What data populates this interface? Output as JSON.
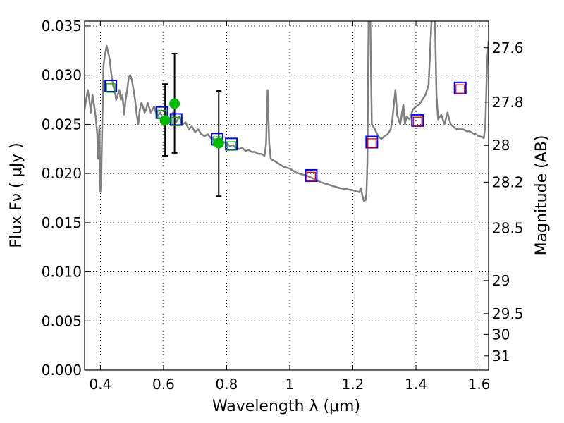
{
  "chart_data": {
    "type": "line",
    "title": "",
    "xlabel": "Wavelength  λ (μm)",
    "ylabel": "Flux  Fν  ( μJy )",
    "y2label": "Magnitude (AB)",
    "xlim": [
      0.35,
      1.63
    ],
    "ylim": [
      0.0,
      0.0355
    ],
    "grid": true,
    "xticks": [
      {
        "value": 0.4,
        "label": "0.4"
      },
      {
        "value": 0.6,
        "label": "0.6"
      },
      {
        "value": 0.8,
        "label": "0.8"
      },
      {
        "value": 1.0,
        "label": "1"
      },
      {
        "value": 1.2,
        "label": "1.2"
      },
      {
        "value": 1.4,
        "label": "1.4"
      },
      {
        "value": 1.6,
        "label": "1.6"
      }
    ],
    "yticks": [
      {
        "value": 0.0,
        "label": "0.000"
      },
      {
        "value": 0.005,
        "label": "0.005"
      },
      {
        "value": 0.01,
        "label": "0.010"
      },
      {
        "value": 0.015,
        "label": "0.015"
      },
      {
        "value": 0.02,
        "label": "0.020"
      },
      {
        "value": 0.025,
        "label": "0.025"
      },
      {
        "value": 0.03,
        "label": "0.030"
      },
      {
        "value": 0.035,
        "label": "0.035"
      }
    ],
    "mag_ticks": [
      {
        "value": 0.03279,
        "label": "27.6"
      },
      {
        "value": 0.02727,
        "label": "27.8"
      },
      {
        "value": 0.02286,
        "label": "28"
      },
      {
        "value": 0.01912,
        "label": "28.2"
      },
      {
        "value": 0.01445,
        "label": "28.5"
      },
      {
        "value": 0.00912,
        "label": "29"
      },
      {
        "value": 0.00575,
        "label": "29.5"
      },
      {
        "value": 0.00363,
        "label": "30"
      },
      {
        "value": 0.00145,
        "label": "31"
      }
    ],
    "spectrum": {
      "name": "model spectrum",
      "color": "#808080",
      "x": [
        0.35,
        0.355,
        0.36,
        0.365,
        0.37,
        0.375,
        0.38,
        0.385,
        0.39,
        0.393,
        0.397,
        0.4,
        0.403,
        0.407,
        0.41,
        0.413,
        0.417,
        0.42,
        0.423,
        0.427,
        0.43,
        0.435,
        0.44,
        0.445,
        0.45,
        0.455,
        0.46,
        0.465,
        0.47,
        0.475,
        0.48,
        0.485,
        0.49,
        0.495,
        0.5,
        0.505,
        0.51,
        0.515,
        0.52,
        0.525,
        0.53,
        0.535,
        0.54,
        0.545,
        0.55,
        0.56,
        0.57,
        0.58,
        0.59,
        0.6,
        0.61,
        0.62,
        0.63,
        0.64,
        0.65,
        0.66,
        0.67,
        0.68,
        0.69,
        0.7,
        0.71,
        0.72,
        0.73,
        0.74,
        0.75,
        0.76,
        0.77,
        0.78,
        0.79,
        0.8,
        0.81,
        0.82,
        0.83,
        0.84,
        0.85,
        0.86,
        0.87,
        0.88,
        0.89,
        0.9,
        0.91,
        0.92,
        0.925,
        0.93,
        0.935,
        0.94,
        0.95,
        0.96,
        0.97,
        0.98,
        0.99,
        1.0,
        1.02,
        1.04,
        1.06,
        1.08,
        1.1,
        1.12,
        1.14,
        1.16,
        1.18,
        1.2,
        1.21,
        1.22,
        1.225,
        1.23,
        1.235,
        1.24,
        1.243,
        1.246,
        1.25,
        1.255,
        1.26,
        1.27,
        1.28,
        1.29,
        1.3,
        1.31,
        1.32,
        1.325,
        1.33,
        1.335,
        1.34,
        1.35,
        1.36,
        1.365,
        1.37,
        1.38,
        1.39,
        1.4,
        1.41,
        1.42,
        1.43,
        1.44,
        1.45,
        1.46,
        1.465,
        1.47,
        1.48,
        1.49,
        1.5,
        1.51,
        1.52,
        1.53,
        1.54,
        1.55,
        1.56,
        1.57,
        1.58,
        1.59,
        1.6,
        1.61,
        1.615,
        1.62,
        1.625,
        1.63
      ],
      "y": [
        0.0265,
        0.0275,
        0.0285,
        0.0275,
        0.0262,
        0.028,
        0.027,
        0.0258,
        0.024,
        0.0215,
        0.0248,
        0.0181,
        0.02,
        0.0265,
        0.031,
        0.0318,
        0.0325,
        0.033,
        0.0325,
        0.032,
        0.0315,
        0.03,
        0.029,
        0.0285,
        0.0275,
        0.028,
        0.0285,
        0.0275,
        0.028,
        0.026,
        0.0275,
        0.0285,
        0.0298,
        0.03,
        0.0295,
        0.0285,
        0.0275,
        0.026,
        0.025,
        0.0265,
        0.0272,
        0.0268,
        0.0262,
        0.0265,
        0.0272,
        0.0262,
        0.0268,
        0.0258,
        0.0262,
        0.0255,
        0.026,
        0.0255,
        0.0262,
        0.0252,
        0.0258,
        0.025,
        0.0252,
        0.0245,
        0.0248,
        0.0242,
        0.0245,
        0.024,
        0.0238,
        0.024,
        0.0236,
        0.0235,
        0.0234,
        0.0233,
        0.0232,
        0.0231,
        0.0228,
        0.0229,
        0.0226,
        0.0225,
        0.0226,
        0.0223,
        0.0224,
        0.0222,
        0.0222,
        0.022,
        0.022,
        0.0218,
        0.023,
        0.0285,
        0.023,
        0.0215,
        0.0213,
        0.0211,
        0.0209,
        0.0207,
        0.0206,
        0.0205,
        0.0201,
        0.0199,
        0.0197,
        0.0194,
        0.0191,
        0.0189,
        0.0187,
        0.0185,
        0.0184,
        0.0183,
        0.0182,
        0.0181,
        0.0185,
        0.0178,
        0.0172,
        0.0173,
        0.018,
        0.021,
        0.036,
        0.036,
        0.025,
        0.0245,
        0.0238,
        0.0235,
        0.0238,
        0.024,
        0.0245,
        0.0255,
        0.027,
        0.0285,
        0.026,
        0.025,
        0.027,
        0.025,
        0.0258,
        0.0255,
        0.0265,
        0.0268,
        0.027,
        0.0275,
        0.028,
        0.029,
        0.036,
        0.036,
        0.028,
        0.0255,
        0.026,
        0.025,
        0.0262,
        0.025,
        0.0247,
        0.0245,
        0.0245,
        0.0245,
        0.0243,
        0.0243,
        0.0241,
        0.024,
        0.0238,
        0.0237,
        0.0236,
        0.025,
        0.031,
        0.0335
      ]
    },
    "series": [
      {
        "name": "green points",
        "color": "#00bb00",
        "points": [
          {
            "x": 0.605,
            "y": 0.0254
          },
          {
            "x": 0.635,
            "y": 0.0271
          },
          {
            "x": 0.775,
            "y": 0.0231
          }
        ]
      },
      {
        "name": "error bars",
        "color": "#000000",
        "bars": [
          {
            "x": 0.605,
            "low": 0.0218,
            "high": 0.0291
          },
          {
            "x": 0.635,
            "low": 0.0221,
            "high": 0.0322
          },
          {
            "x": 0.775,
            "low": 0.0177,
            "high": 0.0284
          }
        ]
      },
      {
        "name": "large blue squares",
        "color": "#0000ee",
        "points": [
          {
            "x": 0.433,
            "y": 0.0289
          },
          {
            "x": 0.595,
            "y": 0.0262
          },
          {
            "x": 0.64,
            "y": 0.0255
          },
          {
            "x": 0.77,
            "y": 0.0235
          },
          {
            "x": 0.815,
            "y": 0.023
          },
          {
            "x": 1.068,
            "y": 0.0198
          },
          {
            "x": 1.26,
            "y": 0.0232
          },
          {
            "x": 1.405,
            "y": 0.0254
          },
          {
            "x": 1.54,
            "y": 0.0287
          }
        ]
      },
      {
        "name": "small green squares",
        "color": "#00aa00",
        "points": [
          {
            "x": 0.433,
            "y": 0.0287
          },
          {
            "x": 0.595,
            "y": 0.026
          },
          {
            "x": 0.64,
            "y": 0.0253
          },
          {
            "x": 0.77,
            "y": 0.0233
          },
          {
            "x": 0.815,
            "y": 0.0228
          }
        ]
      },
      {
        "name": "small red squares",
        "color": "#ee0000",
        "points": [
          {
            "x": 1.068,
            "y": 0.0197
          },
          {
            "x": 1.26,
            "y": 0.0231
          },
          {
            "x": 1.405,
            "y": 0.0253
          },
          {
            "x": 1.54,
            "y": 0.0286
          }
        ]
      }
    ]
  }
}
